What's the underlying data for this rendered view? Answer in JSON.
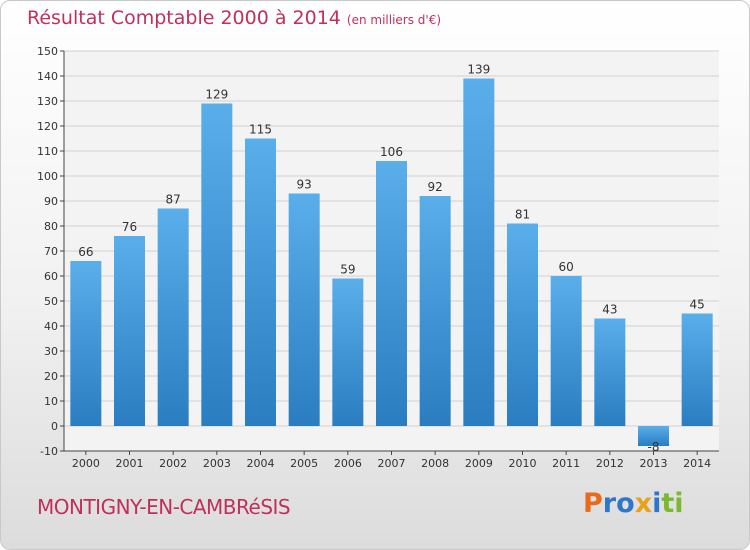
{
  "header": {
    "title": "Résultat Comptable 2000 à 2014",
    "unit": "(en milliers d'€)"
  },
  "footer": {
    "location": "MONTIGNY-EN-CAMBRéSIS",
    "logo": [
      {
        "char": "P",
        "color": "#e86a1a"
      },
      {
        "char": "r",
        "color": "#2f76c8"
      },
      {
        "char": "o",
        "color": "#2f76c8"
      },
      {
        "char": "x",
        "color": "#e8a21a"
      },
      {
        "char": "i",
        "color": "#2f76c8"
      },
      {
        "char": "t",
        "color": "#7ab82e"
      },
      {
        "char": "i",
        "color": "#7ab82e"
      }
    ]
  },
  "colors": {
    "bar_top": "#5aaeea",
    "bar_bottom": "#2a7dc0",
    "grid": "#d0d0d0",
    "title": "#c0305a"
  },
  "chart_data": {
    "type": "bar",
    "title": "Résultat Comptable 2000 à 2014",
    "subtitle": "(en milliers d'€)",
    "categories": [
      "2000",
      "2001",
      "2002",
      "2003",
      "2004",
      "2005",
      "2006",
      "2007",
      "2008",
      "2009",
      "2010",
      "2011",
      "2012",
      "2013",
      "2014"
    ],
    "values": [
      66,
      76,
      87,
      129,
      115,
      93,
      59,
      106,
      92,
      139,
      81,
      60,
      43,
      -8,
      45
    ],
    "data_labels": [
      "66",
      "76",
      "87",
      "129",
      "115",
      "93",
      "59",
      "106",
      "92",
      "139",
      "81",
      "60",
      "43",
      "-8",
      "45"
    ],
    "ylim": [
      -10,
      150
    ],
    "yticks": [
      -10,
      0,
      10,
      20,
      30,
      40,
      50,
      60,
      70,
      80,
      90,
      100,
      110,
      120,
      130,
      140,
      150
    ],
    "grid": true,
    "legend": "none"
  }
}
